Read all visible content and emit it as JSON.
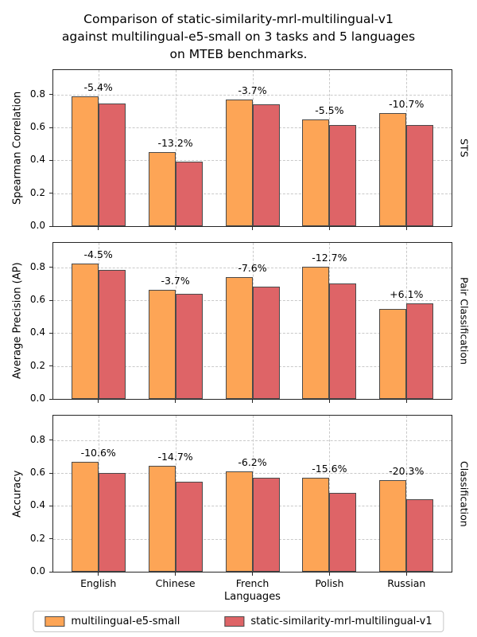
{
  "title_lines": [
    "Comparison of static-similarity-mrl-multilingual-v1",
    "against multilingual-e5-small on 3 tasks and 5 languages",
    "on MTEB benchmarks."
  ],
  "xlabel": "Languages",
  "categories": [
    "English",
    "Chinese",
    "French",
    "Polish",
    "Russian"
  ],
  "ytick_labels": [
    "0.0",
    "0.2",
    "0.4",
    "0.6",
    "0.8"
  ],
  "colors": {
    "series_a": "#FDA556",
    "series_b": "#DE6467",
    "bar_edge": "#4a4a4a",
    "grid": "#c9c9c9",
    "spine": "#262626"
  },
  "legend": {
    "items": [
      {
        "label": "multilingual-e5-small",
        "color_key": "series_a"
      },
      {
        "label": "static-similarity-mrl-multilingual-v1",
        "color_key": "series_b"
      }
    ]
  },
  "chart_data": [
    {
      "type": "bar",
      "task": "STS",
      "ylabel": "Spearman Correlation",
      "categories": [
        "English",
        "Chinese",
        "French",
        "Polish",
        "Russian"
      ],
      "series": [
        {
          "name": "multilingual-e5-small",
          "values": [
            0.79,
            0.453,
            0.77,
            0.651,
            0.689
          ]
        },
        {
          "name": "static-similarity-mrl-multilingual-v1",
          "values": [
            0.747,
            0.393,
            0.742,
            0.615,
            0.615
          ]
        }
      ],
      "annotations": [
        "-5.4%",
        "-13.2%",
        "-3.7%",
        "-5.5%",
        "-10.7%"
      ],
      "ylim": [
        0.0,
        0.95
      ],
      "yticks": [
        0.0,
        0.2,
        0.4,
        0.6,
        0.8
      ],
      "grid": true,
      "legend_position": "bottom"
    },
    {
      "type": "bar",
      "task": "Pair Classification",
      "ylabel": "Average Precision (AP)",
      "categories": [
        "English",
        "Chinese",
        "French",
        "Polish",
        "Russian"
      ],
      "series": [
        {
          "name": "multilingual-e5-small",
          "values": [
            0.824,
            0.664,
            0.74,
            0.804,
            0.55
          ]
        },
        {
          "name": "static-similarity-mrl-multilingual-v1",
          "values": [
            0.787,
            0.639,
            0.684,
            0.702,
            0.584
          ]
        }
      ],
      "annotations": [
        "-4.5%",
        "-3.7%",
        "-7.6%",
        "-12.7%",
        "+6.1%"
      ],
      "ylim": [
        0.0,
        0.95
      ],
      "yticks": [
        0.0,
        0.2,
        0.4,
        0.6,
        0.8
      ],
      "grid": true,
      "legend_position": "bottom"
    },
    {
      "type": "bar",
      "task": "Classification",
      "ylabel": "Accuracy",
      "categories": [
        "English",
        "Chinese",
        "French",
        "Polish",
        "Russian"
      ],
      "series": [
        {
          "name": "multilingual-e5-small",
          "values": [
            0.67,
            0.645,
            0.61,
            0.57,
            0.556
          ]
        },
        {
          "name": "static-similarity-mrl-multilingual-v1",
          "values": [
            0.599,
            0.55,
            0.572,
            0.481,
            0.443
          ]
        }
      ],
      "annotations": [
        "-10.6%",
        "-14.7%",
        "-6.2%",
        "-15.6%",
        "-20.3%"
      ],
      "ylim": [
        0.0,
        0.95
      ],
      "yticks": [
        0.0,
        0.2,
        0.4,
        0.6,
        0.8
      ],
      "grid": true,
      "legend_position": "bottom"
    }
  ]
}
